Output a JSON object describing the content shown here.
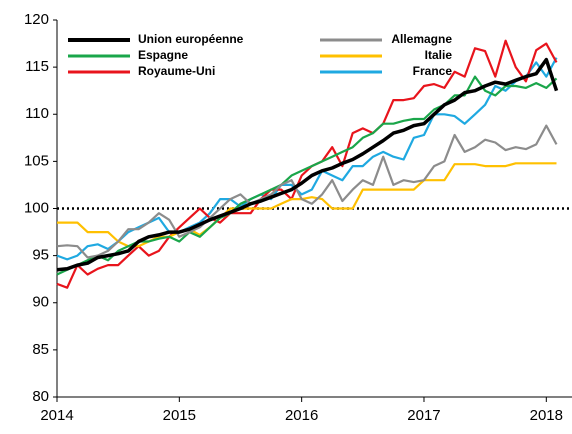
{
  "chart_data": {
    "type": "line",
    "x": [
      2014,
      2014.083,
      2014.167,
      2014.25,
      2014.333,
      2014.417,
      2014.5,
      2014.583,
      2014.667,
      2014.75,
      2014.833,
      2014.917,
      2015,
      2015.083,
      2015.167,
      2015.25,
      2015.333,
      2015.417,
      2015.5,
      2015.583,
      2015.667,
      2015.75,
      2015.833,
      2015.917,
      2016,
      2016.083,
      2016.167,
      2016.25,
      2016.333,
      2016.417,
      2016.5,
      2016.583,
      2016.667,
      2016.75,
      2016.833,
      2016.917,
      2017,
      2017.083,
      2017.167,
      2017.25,
      2017.333,
      2017.417,
      2017.5,
      2017.583,
      2017.667,
      2017.75,
      2017.833,
      2017.917,
      2018,
      2018.083
    ],
    "series": [
      {
        "name": "Union européenne",
        "color": "#000000",
        "values": [
          93.5,
          93.6,
          94,
          94.2,
          94.8,
          95,
          95.2,
          95.5,
          96.5,
          97,
          97.2,
          97.5,
          97.5,
          97.8,
          98.3,
          98.8,
          99.2,
          99.6,
          100,
          100.5,
          100.8,
          101.2,
          101.6,
          102,
          102.7,
          103.5,
          104,
          104.3,
          104.8,
          105.2,
          105.8,
          106.5,
          107.2,
          108,
          108.3,
          108.8,
          109,
          110,
          111,
          111.5,
          112.3,
          112.5,
          113,
          113.4,
          113.2,
          113.6,
          114,
          114.3,
          115.8,
          112.5
        ]
      },
      {
        "name": "Allemagne",
        "color": "#8c8c8c",
        "values": [
          96,
          96.1,
          96,
          94.8,
          95,
          95.5,
          96.5,
          97.8,
          97.8,
          98.5,
          99.5,
          98.8,
          97,
          97.5,
          98,
          99,
          100,
          101,
          101.5,
          100.5,
          101,
          101.5,
          102.5,
          103,
          101,
          100.5,
          101.5,
          103,
          100.8,
          102,
          103,
          102.5,
          105.5,
          102.5,
          103,
          102.8,
          103,
          104.5,
          105,
          107.8,
          106,
          106.5,
          107.3,
          107,
          106.2,
          106.5,
          106.3,
          106.8,
          108.8,
          106.8
        ]
      },
      {
        "name": "Espagne",
        "color": "#1aa64a",
        "values": [
          93,
          93.5,
          94,
          94.5,
          95,
          94.5,
          95.5,
          96,
          96.5,
          96.5,
          96.8,
          97,
          96.5,
          97.5,
          97,
          98,
          99,
          99.5,
          100.5,
          101,
          101.5,
          102,
          102.5,
          103.5,
          104,
          104.5,
          105,
          105.5,
          106,
          106.5,
          107.5,
          108,
          109,
          109,
          109.3,
          109.5,
          109.5,
          110.5,
          111,
          112,
          112,
          114,
          112.5,
          112,
          113,
          113,
          112.8,
          113.3,
          112.8,
          113.8
        ]
      },
      {
        "name": "Italie",
        "color": "#ffc000",
        "values": [
          98.5,
          98.5,
          98.5,
          97.5,
          97.5,
          97.5,
          96.5,
          96,
          96,
          96.5,
          97,
          97,
          97.5,
          97.8,
          97.2,
          98,
          99,
          100,
          100,
          100,
          100,
          100,
          100.5,
          101,
          101,
          101.2,
          101,
          100,
          100,
          100,
          102,
          102,
          102,
          102,
          102,
          102,
          103,
          103,
          103,
          104.7,
          104.7,
          104.7,
          104.5,
          104.5,
          104.5,
          104.8,
          104.8,
          104.8,
          104.8,
          104.8
        ]
      },
      {
        "name": "Royaume-Uni",
        "color": "#e8141c",
        "values": [
          92,
          91.6,
          94,
          93,
          93.6,
          94,
          94,
          95,
          96,
          95,
          95.5,
          97,
          98,
          99,
          100,
          99,
          98.5,
          99.5,
          99.5,
          99.5,
          101,
          102,
          102,
          101,
          103.5,
          104.5,
          105,
          106.5,
          104.5,
          108,
          108.5,
          108,
          109,
          111.5,
          111.5,
          111.7,
          113,
          113.2,
          112.8,
          114.5,
          114,
          117,
          116.7,
          114,
          117.8,
          115,
          113.5,
          116.8,
          117.5,
          115.5
        ]
      },
      {
        "name": "France",
        "color": "#1fa9e1",
        "values": [
          95,
          94.6,
          95,
          96,
          96.2,
          95.7,
          96.5,
          97.5,
          98,
          98.5,
          99,
          97.5,
          97.5,
          98,
          98.5,
          99.5,
          101,
          101,
          100.2,
          101,
          101.5,
          101,
          102.5,
          102.5,
          101.5,
          102,
          104,
          103.5,
          103,
          104.5,
          104.5,
          105.5,
          106,
          105.5,
          105.2,
          107.5,
          107.8,
          110,
          110,
          109.8,
          109,
          110,
          111,
          113,
          112.5,
          113.5,
          114,
          115.5,
          114,
          116
        ]
      }
    ],
    "reference_line": 100,
    "xlim": [
      2014,
      2018.21
    ],
    "xticks": [
      2014,
      2015,
      2016,
      2017,
      2018
    ],
    "ylim": [
      80,
      120
    ],
    "yticks": [
      80,
      85,
      90,
      95,
      100,
      105,
      110,
      115,
      120
    ],
    "legend": "upper-left"
  }
}
